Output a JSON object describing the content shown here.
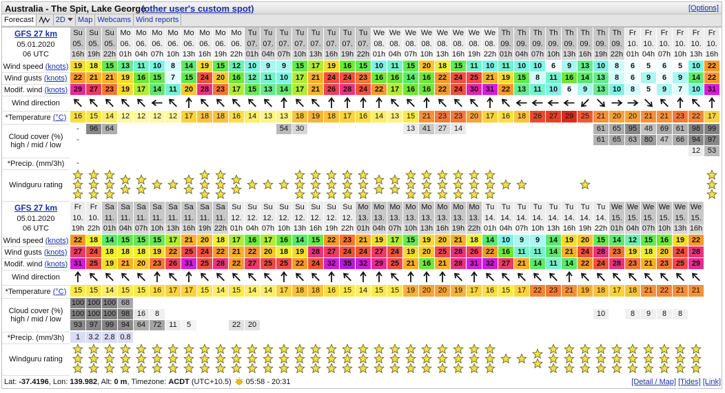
{
  "header": {
    "title": "Australia - The Spit, Lake George",
    "link": "(other user's custom spot)",
    "options": "[Options]"
  },
  "tabs": [
    "Forecast",
    "2D",
    "Map",
    "Webcams",
    "Wind reports"
  ],
  "labels": {
    "wind_speed": "Wind speed",
    "wind_gusts": "Wind gusts",
    "modif_wind": "Modif. wind",
    "knots": "(knots)",
    "wind_direction": "Wind direction",
    "temperature": "*Temperature",
    "celsius": "(°C)",
    "cloud": "Cloud cover (%)",
    "cloud_levels": "high / mid / low",
    "precip": "*Precip. (mm/3h)",
    "rating": "Windguru rating"
  },
  "blocks": [
    {
      "model": "GFS 27 km",
      "date": "05.01.2020",
      "utc": "06 UTC",
      "days": [
        "Su",
        "Su",
        "Su",
        "Mo",
        "Mo",
        "Mo",
        "Mo",
        "Mo",
        "Mo",
        "Mo",
        "Mo",
        "Tu",
        "Tu",
        "Tu",
        "Tu",
        "Tu",
        "Tu",
        "Tu",
        "Tu",
        "We",
        "We",
        "We",
        "We",
        "We",
        "We",
        "We",
        "We",
        "Th",
        "Th",
        "Th",
        "Th",
        "Th",
        "Th",
        "Th",
        "Th",
        "Fr",
        "Fr",
        "Fr",
        "Fr",
        "Fr",
        "Fr"
      ],
      "dates": [
        "05.",
        "05.",
        "05.",
        "06.",
        "06.",
        "06.",
        "06.",
        "06.",
        "06.",
        "06.",
        "06.",
        "07.",
        "07.",
        "07.",
        "07.",
        "07.",
        "07.",
        "07.",
        "07.",
        "08.",
        "08.",
        "08.",
        "08.",
        "08.",
        "08.",
        "08.",
        "08.",
        "09.",
        "09.",
        "09.",
        "09.",
        "09.",
        "09.",
        "09.",
        "09.",
        "10.",
        "10.",
        "10.",
        "10.",
        "10.",
        "10."
      ],
      "hours": [
        "16h",
        "19h",
        "22h",
        "01h",
        "04h",
        "07h",
        "10h",
        "13h",
        "16h",
        "19h",
        "22h",
        "01h",
        "04h",
        "07h",
        "10h",
        "13h",
        "16h",
        "19h",
        "22h",
        "01h",
        "04h",
        "07h",
        "10h",
        "13h",
        "16h",
        "19h",
        "22h",
        "01h",
        "04h",
        "07h",
        "10h",
        "13h",
        "16h",
        "19h",
        "22h",
        "01h",
        "04h",
        "07h",
        "10h",
        "13h",
        "16h"
      ],
      "wind_speed": [
        19,
        18,
        15,
        13,
        11,
        10,
        8,
        14,
        19,
        15,
        12,
        10,
        9,
        9,
        15,
        17,
        19,
        16,
        15,
        10,
        11,
        15,
        20,
        18,
        15,
        11,
        10,
        11,
        10,
        10,
        6,
        9,
        13,
        10,
        8,
        6,
        5,
        6,
        5,
        10,
        22
      ],
      "wind_gusts": [
        22,
        21,
        21,
        19,
        16,
        15,
        7,
        15,
        24,
        20,
        16,
        12,
        11,
        10,
        17,
        21,
        24,
        24,
        23,
        16,
        16,
        14,
        16,
        22,
        24,
        25,
        21,
        19,
        15,
        8,
        11,
        16,
        14,
        13,
        8,
        6,
        9,
        6,
        9,
        14,
        22
      ],
      "modif_wind": [
        29,
        27,
        23,
        19,
        17,
        14,
        11,
        20,
        28,
        23,
        17,
        15,
        13,
        14,
        17,
        21,
        26,
        28,
        24,
        22,
        17,
        16,
        16,
        22,
        24,
        30,
        31,
        22,
        13,
        11,
        10,
        6,
        9,
        13,
        10,
        8,
        5,
        9,
        7,
        10,
        31
      ],
      "wind_direction": [
        315,
        315,
        315,
        315,
        315,
        270,
        315,
        0,
        315,
        315,
        315,
        315,
        315,
        0,
        315,
        315,
        0,
        0,
        0,
        0,
        315,
        315,
        0,
        315,
        315,
        315,
        0,
        315,
        270,
        270,
        270,
        270,
        225,
        135,
        90,
        90,
        135,
        315,
        0,
        315,
        0
      ],
      "temperature": [
        16,
        15,
        14,
        12,
        12,
        12,
        12,
        17,
        18,
        18,
        16,
        14,
        13,
        13,
        18,
        19,
        18,
        17,
        16,
        14,
        13,
        15,
        21,
        23,
        23,
        20,
        17,
        16,
        18,
        26,
        27,
        29,
        25,
        21,
        20,
        20,
        21,
        21,
        23,
        22,
        17
      ],
      "cloud_high": [
        "-",
        96,
        64,
        null,
        null,
        null,
        null,
        null,
        null,
        null,
        null,
        null,
        null,
        54,
        30,
        null,
        null,
        null,
        null,
        null,
        null,
        13,
        41,
        27,
        14,
        null,
        null,
        null,
        null,
        null,
        null,
        null,
        null,
        61,
        65,
        95,
        48,
        69,
        61,
        98,
        99
      ],
      "cloud_mid": [
        "-",
        null,
        null,
        null,
        null,
        null,
        null,
        null,
        null,
        null,
        null,
        null,
        null,
        null,
        null,
        null,
        null,
        null,
        null,
        null,
        null,
        null,
        null,
        null,
        null,
        null,
        null,
        null,
        null,
        null,
        null,
        null,
        null,
        61,
        65,
        63,
        80,
        47,
        66,
        94,
        97
      ],
      "cloud_low": [
        null,
        null,
        null,
        null,
        null,
        null,
        null,
        null,
        null,
        null,
        null,
        null,
        null,
        null,
        null,
        null,
        null,
        null,
        null,
        null,
        null,
        null,
        null,
        null,
        null,
        null,
        null,
        null,
        null,
        null,
        null,
        null,
        null,
        null,
        null,
        null,
        null,
        null,
        null,
        12,
        53
      ],
      "precip": [
        "-",
        null,
        null,
        null,
        null,
        null,
        null,
        null,
        null,
        null,
        null,
        null,
        null,
        null,
        null,
        null,
        null,
        null,
        null,
        null,
        null,
        null,
        null,
        null,
        null,
        null,
        null,
        null,
        null,
        null,
        null,
        null,
        null,
        null,
        null,
        null,
        null,
        null,
        null,
        null,
        null
      ],
      "rating": [
        3,
        3,
        3,
        2,
        2,
        1,
        1,
        2,
        3,
        3,
        2,
        1,
        1,
        1,
        3,
        3,
        3,
        3,
        3,
        2,
        2,
        3,
        3,
        3,
        3,
        3,
        3,
        1,
        1,
        0,
        0,
        0,
        1,
        0,
        0,
        0,
        0,
        0,
        0,
        0,
        3
      ]
    },
    {
      "model": "GFS 27 km",
      "date": "05.01.2020",
      "utc": "06 UTC",
      "days": [
        "Fr",
        "Fr",
        "Sa",
        "Sa",
        "Sa",
        "Sa",
        "Sa",
        "Sa",
        "Sa",
        "Sa",
        "Su",
        "Su",
        "Su",
        "Su",
        "Su",
        "Su",
        "Su",
        "Su",
        "Mo",
        "Mo",
        "Mo",
        "Mo",
        "Mo",
        "Mo",
        "Mo",
        "Mo",
        "Tu",
        "Tu",
        "Tu",
        "Tu",
        "Tu",
        "Tu",
        "Tu",
        "Tu",
        "We",
        "We",
        "We",
        "We",
        "We",
        "We"
      ],
      "dates": [
        "10.",
        "10.",
        "11.",
        "11.",
        "11.",
        "11.",
        "11.",
        "11.",
        "11.",
        "11.",
        "12.",
        "12.",
        "12.",
        "12.",
        "12.",
        "12.",
        "12.",
        "12.",
        "13.",
        "13.",
        "13.",
        "13.",
        "13.",
        "13.",
        "13.",
        "13.",
        "14.",
        "14.",
        "14.",
        "14.",
        "14.",
        "14.",
        "14.",
        "14.",
        "15.",
        "15.",
        "15.",
        "15.",
        "15.",
        "15."
      ],
      "hours": [
        "19h",
        "22h",
        "01h",
        "04h",
        "07h",
        "10h",
        "13h",
        "16h",
        "19h",
        "22h",
        "01h",
        "04h",
        "07h",
        "10h",
        "13h",
        "16h",
        "19h",
        "22h",
        "01h",
        "04h",
        "07h",
        "10h",
        "13h",
        "16h",
        "19h",
        "22h",
        "01h",
        "04h",
        "07h",
        "10h",
        "13h",
        "16h",
        "19h",
        "22h",
        "01h",
        "04h",
        "07h",
        "10h",
        "13h",
        "16h"
      ],
      "wind_speed": [
        22,
        18,
        14,
        15,
        15,
        15,
        17,
        21,
        20,
        18,
        17,
        16,
        17,
        16,
        14,
        15,
        22,
        23,
        21,
        19,
        17,
        15,
        19,
        20,
        21,
        18,
        14,
        10,
        9,
        9,
        14,
        19,
        20,
        15,
        14,
        12,
        15,
        16,
        19,
        22
      ],
      "wind_gusts": [
        27,
        24,
        18,
        18,
        18,
        19,
        22,
        25,
        24,
        22,
        21,
        22,
        20,
        18,
        19,
        28,
        27,
        24,
        24,
        27,
        24,
        19,
        20,
        25,
        28,
        26,
        22,
        16,
        11,
        11,
        14,
        21,
        24,
        28,
        23,
        19,
        18,
        20,
        24,
        28
      ],
      "modif_wind": [
        31,
        25,
        19,
        21,
        20,
        23,
        26,
        31,
        25,
        28,
        22,
        27,
        25,
        25,
        22,
        24,
        32,
        35,
        32,
        29,
        25,
        21,
        16,
        21,
        28,
        31,
        32,
        27,
        21,
        14,
        11,
        14,
        22,
        24,
        28,
        23,
        21,
        23,
        25,
        29
      ],
      "wind_direction": [
        0,
        315,
        315,
        315,
        315,
        0,
        315,
        0,
        315,
        315,
        315,
        315,
        315,
        0,
        315,
        315,
        0,
        315,
        0,
        0,
        315,
        0,
        0,
        0,
        315,
        0,
        315,
        315,
        315,
        315,
        315,
        0,
        315,
        315,
        315,
        315,
        315,
        315,
        315,
        315
      ],
      "temperature": [
        15,
        15,
        14,
        15,
        15,
        16,
        17,
        17,
        15,
        14,
        15,
        14,
        14,
        17,
        18,
        18,
        16,
        15,
        14,
        15,
        15,
        19,
        20,
        20,
        19,
        17,
        16,
        15,
        17,
        22,
        23,
        21,
        19,
        18,
        17,
        18,
        21,
        22,
        21,
        21
      ],
      "cloud_high": [
        100,
        100,
        100,
        68,
        null,
        null,
        null,
        null,
        null,
        null,
        null,
        null,
        null,
        null,
        null,
        null,
        null,
        null,
        null,
        null,
        null,
        null,
        null,
        null,
        null,
        null,
        null,
        null,
        null,
        null,
        null,
        null,
        null,
        null,
        null,
        null,
        null,
        null,
        null,
        null
      ],
      "cloud_mid": [
        100,
        100,
        100,
        98,
        16,
        8,
        null,
        null,
        null,
        null,
        null,
        null,
        null,
        null,
        null,
        null,
        null,
        null,
        null,
        null,
        null,
        null,
        null,
        null,
        null,
        null,
        null,
        null,
        null,
        null,
        null,
        null,
        null,
        10,
        null,
        8,
        9,
        8,
        8,
        null
      ],
      "cloud_low": [
        93,
        97,
        99,
        94,
        64,
        72,
        11,
        5,
        null,
        null,
        22,
        20,
        null,
        null,
        null,
        null,
        null,
        null,
        null,
        null,
        null,
        null,
        null,
        null,
        null,
        null,
        null,
        null,
        null,
        null,
        null,
        null,
        null,
        null,
        null,
        null,
        null,
        null,
        null,
        null
      ],
      "precip": [
        1,
        3.2,
        2.8,
        0.8,
        null,
        null,
        null,
        null,
        null,
        null,
        null,
        null,
        null,
        null,
        null,
        null,
        null,
        null,
        null,
        null,
        null,
        null,
        null,
        null,
        null,
        null,
        null,
        null,
        null,
        null,
        null,
        null,
        null,
        null,
        null,
        null,
        null,
        null,
        null,
        null
      ],
      "rating": [
        3,
        3,
        3,
        3,
        3,
        3,
        3,
        3,
        3,
        3,
        3,
        3,
        3,
        3,
        3,
        3,
        3,
        3,
        3,
        3,
        3,
        3,
        3,
        3,
        3,
        3,
        3,
        1,
        1,
        2,
        3,
        3,
        3,
        3,
        3,
        3,
        3,
        3,
        3,
        3
      ]
    }
  ],
  "footer": {
    "segments": [
      {
        "text": "Lat:"
      },
      {
        "text": "-37.4196",
        "bold": true
      },
      {
        "text": ", Lon:"
      },
      {
        "text": "139.982",
        "bold": true
      },
      {
        "text": ", Alt:"
      },
      {
        "text": "0 m",
        "bold": true
      },
      {
        "text": ", Timezone:"
      },
      {
        "text": "ACDT",
        "bold": true
      },
      {
        "text": "(UTC+10.5)"
      },
      {
        "text": "05:58 - 20:31"
      }
    ],
    "links": [
      "[Detail / Map]",
      "[Tides]",
      "[Link]"
    ]
  }
}
